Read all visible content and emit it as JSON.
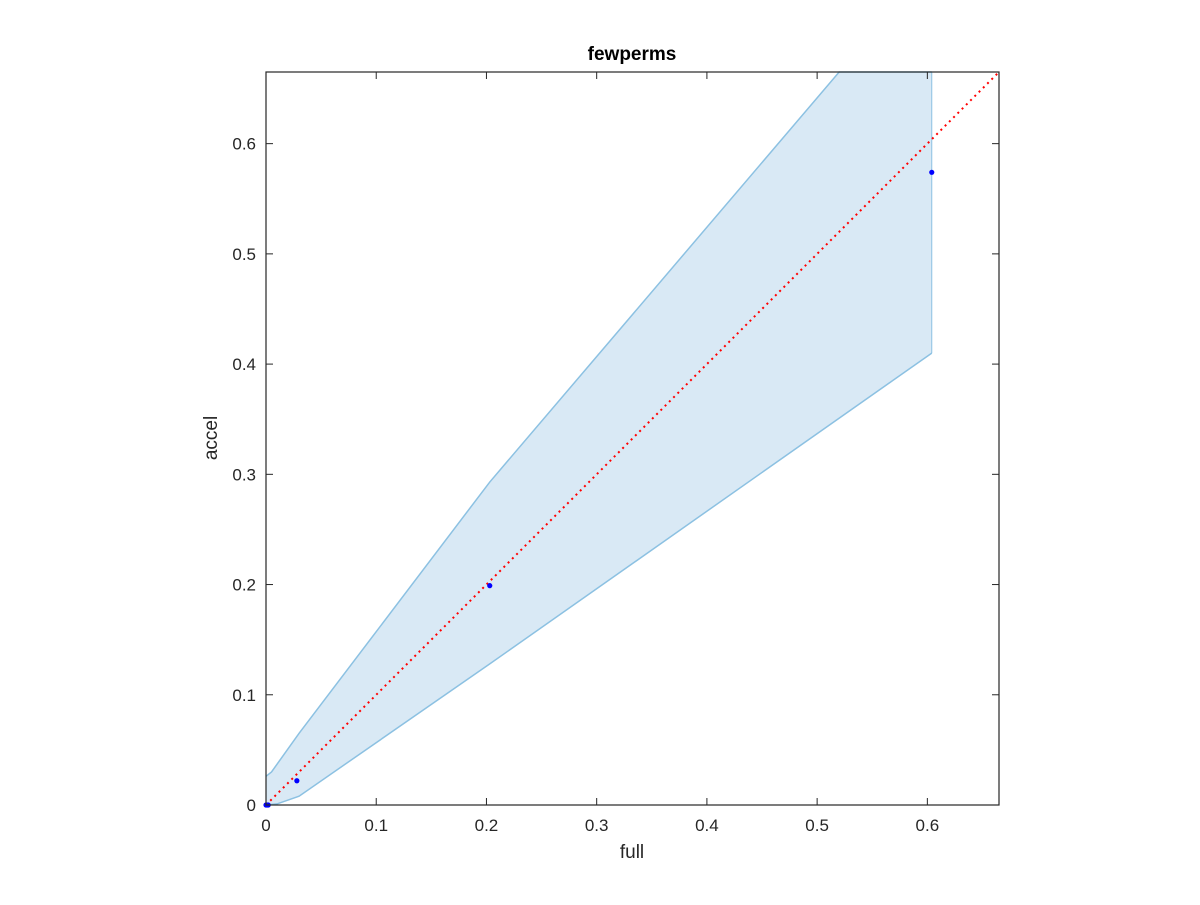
{
  "chart_data": {
    "type": "scatter",
    "title": "fewperms",
    "xlabel": "full",
    "ylabel": "accel",
    "xlim": [
      0,
      0.665
    ],
    "ylim": [
      0,
      0.665
    ],
    "xticks": [
      0,
      0.1,
      0.2,
      0.3,
      0.4,
      0.5,
      0.6
    ],
    "yticks": [
      0,
      0.1,
      0.2,
      0.3,
      0.4,
      0.5,
      0.6
    ],
    "xtick_labels": [
      "0",
      "0.1",
      "0.2",
      "0.3",
      "0.4",
      "0.5",
      "0.6"
    ],
    "ytick_labels": [
      "0",
      "0.1",
      "0.2",
      "0.3",
      "0.4",
      "0.5",
      "0.6"
    ],
    "grid": false,
    "box": true,
    "points": {
      "x": [
        0,
        0.001,
        0.002,
        0.028,
        0.203,
        0.604
      ],
      "y": [
        0,
        0,
        0,
        0.022,
        0.199,
        0.574
      ],
      "color": "#0000ff"
    },
    "band": {
      "upper": [
        [
          0,
          0.026
        ],
        [
          0.005,
          0.03
        ],
        [
          0.03,
          0.065
        ],
        [
          0.203,
          0.293
        ],
        [
          0.52,
          0.665
        ],
        [
          0.604,
          0.665
        ]
      ],
      "lower": [
        [
          0,
          0
        ],
        [
          0.01,
          0.001
        ],
        [
          0.03,
          0.008
        ],
        [
          0.203,
          0.128
        ],
        [
          0.604,
          0.41
        ]
      ],
      "fill_color": "#d9e9f5",
      "edge_color": "#8cc1e2"
    },
    "reference_line": {
      "from": [
        0,
        0
      ],
      "to": [
        0.665,
        0.665
      ],
      "color": "#ff0000",
      "style": "dotted"
    }
  }
}
